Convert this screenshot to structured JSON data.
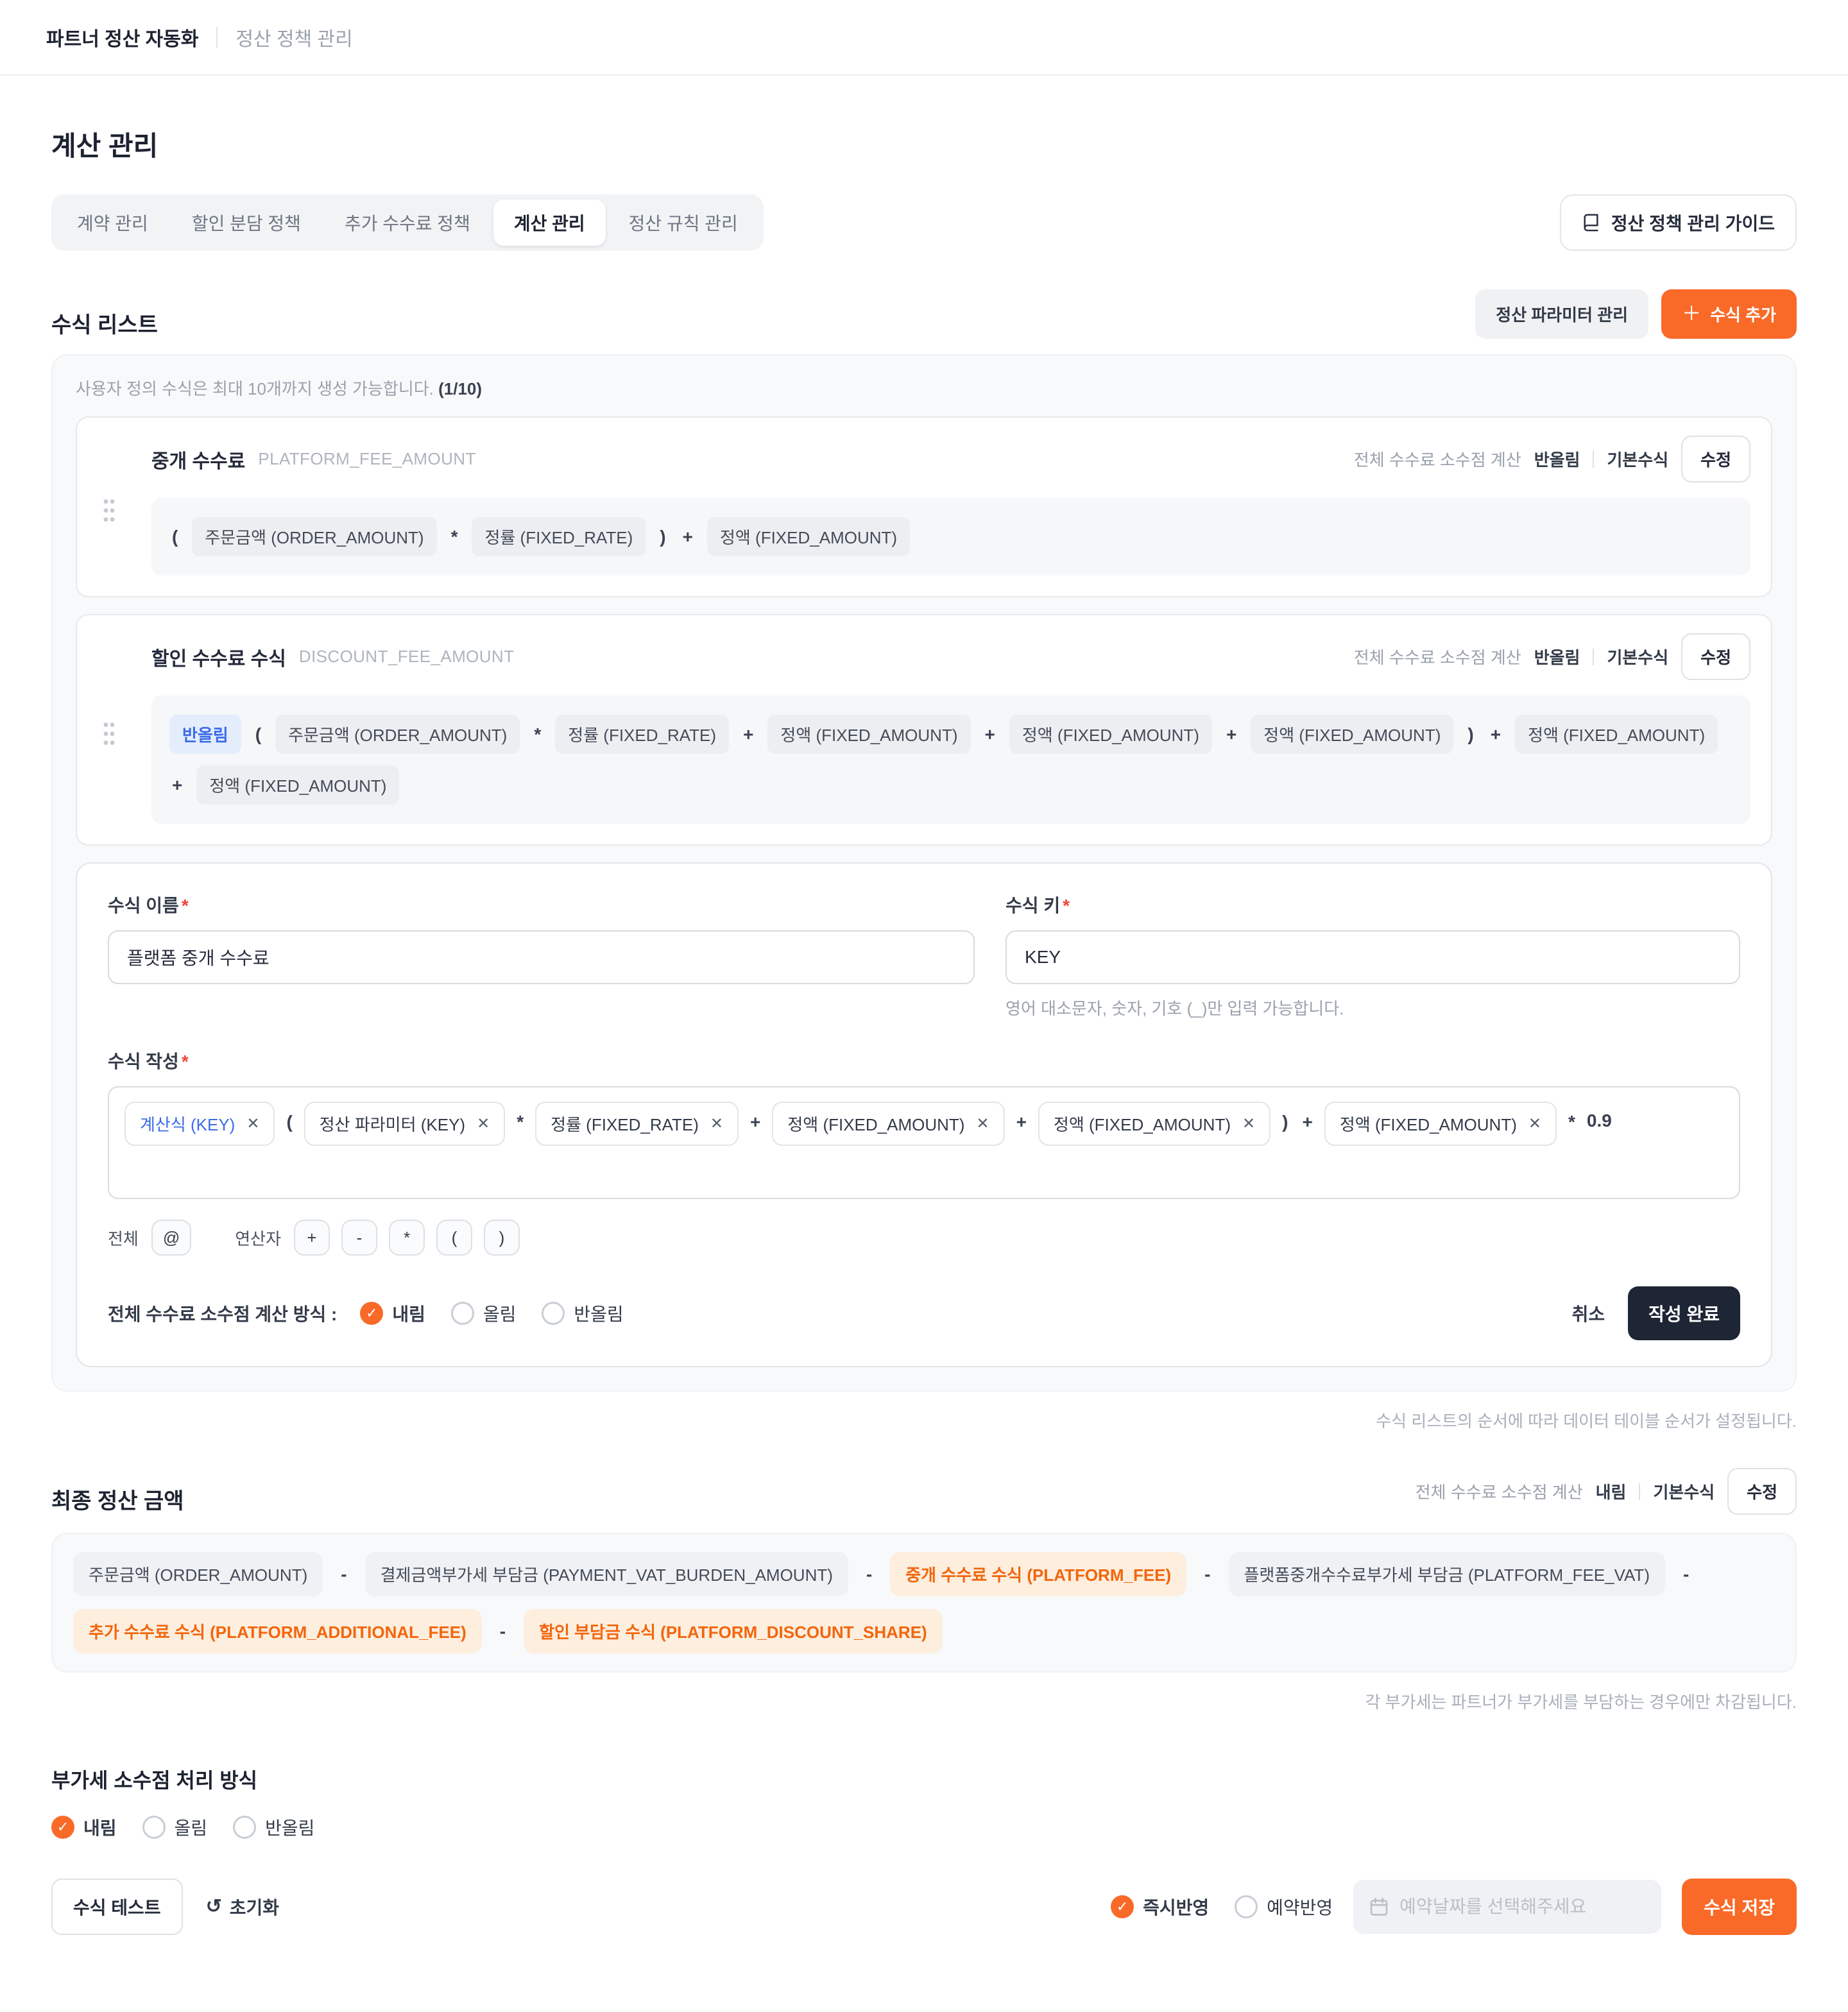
{
  "header": {
    "app_title": "파트너 정산 자동화",
    "breadcrumb": "정산 정책 관리"
  },
  "page": {
    "title": "계산 관리"
  },
  "tabs": {
    "items": [
      {
        "label": "계약 관리",
        "active": false
      },
      {
        "label": "할인 분담 정책",
        "active": false
      },
      {
        "label": "추가 수수료 정책",
        "active": false
      },
      {
        "label": "계산 관리",
        "active": true
      },
      {
        "label": "정산 규칙 관리",
        "active": false
      }
    ],
    "guide_button": "정산 정책 관리 가이드"
  },
  "formula_list": {
    "title": "수식 리스트",
    "param_button": "정산 파라미터 관리",
    "add_button": "수식 추가",
    "notice_text": "사용자 정의 수식은 최대 10개까지 생성 가능합니다. ",
    "notice_count": "(1/10)",
    "cards": [
      {
        "name": "중개 수수료",
        "key": "PLATFORM_FEE_AMOUNT",
        "meta_label": "전체 수수료 소수점 계산",
        "rounding": "반올림",
        "base_label": "기본수식",
        "edit_label": "수정",
        "tokens": [
          {
            "t": "op",
            "v": "("
          },
          {
            "t": "chip",
            "v": "주문금액 (ORDER_AMOUNT)"
          },
          {
            "t": "op",
            "v": "*"
          },
          {
            "t": "chip",
            "v": "정률 (FIXED_RATE)"
          },
          {
            "t": "op",
            "v": ")"
          },
          {
            "t": "op",
            "v": "+"
          },
          {
            "t": "chip",
            "v": "정액 (FIXED_AMOUNT)"
          }
        ]
      },
      {
        "name": "할인 수수료 수식",
        "key": "DISCOUNT_FEE_AMOUNT",
        "meta_label": "전체 수수료 소수점 계산",
        "rounding": "반올림",
        "base_label": "기본수식",
        "edit_label": "수정",
        "tokens": [
          {
            "t": "badge",
            "v": "반올림"
          },
          {
            "t": "op",
            "v": "("
          },
          {
            "t": "chip",
            "v": "주문금액 (ORDER_AMOUNT)"
          },
          {
            "t": "op",
            "v": "*"
          },
          {
            "t": "chip",
            "v": "정률 (FIXED_RATE)"
          },
          {
            "t": "op",
            "v": "+"
          },
          {
            "t": "chip",
            "v": "정액 (FIXED_AMOUNT)"
          },
          {
            "t": "op",
            "v": "+"
          },
          {
            "t": "chip",
            "v": "정액 (FIXED_AMOUNT)"
          },
          {
            "t": "op",
            "v": "+"
          },
          {
            "t": "chip",
            "v": "정액 (FIXED_AMOUNT)"
          },
          {
            "t": "op",
            "v": ")"
          },
          {
            "t": "op",
            "v": "+"
          },
          {
            "t": "chip",
            "v": "정액 (FIXED_AMOUNT)"
          },
          {
            "t": "op",
            "v": "+"
          },
          {
            "t": "chip",
            "v": "정액 (FIXED_AMOUNT)"
          }
        ]
      }
    ]
  },
  "editor": {
    "name_label": "수식 이름",
    "name_value": "플랫폼 중개 수수료",
    "key_label": "수식 키",
    "key_value": "KEY",
    "key_helper": "영어 대소문자, 숫자, 기호 (_)만 입력 가능합니다.",
    "builder_label": "수식 작성",
    "tokens": [
      {
        "t": "rchip",
        "v": "계산식 (KEY)",
        "blue": true
      },
      {
        "t": "op",
        "v": "("
      },
      {
        "t": "rchip",
        "v": "정산 파라미터 (KEY)"
      },
      {
        "t": "op",
        "v": "*"
      },
      {
        "t": "rchip",
        "v": "정률 (FIXED_RATE)"
      },
      {
        "t": "op",
        "v": "+"
      },
      {
        "t": "rchip",
        "v": "정액 (FIXED_AMOUNT)"
      },
      {
        "t": "op",
        "v": "+"
      },
      {
        "t": "rchip",
        "v": "정액 (FIXED_AMOUNT)"
      },
      {
        "t": "op",
        "v": ")"
      },
      {
        "t": "op",
        "v": "+"
      },
      {
        "t": "rchip",
        "v": "정액 (FIXED_AMOUNT)"
      },
      {
        "t": "op",
        "v": "*"
      },
      {
        "t": "num",
        "v": "0.9"
      }
    ],
    "all_label": "전체",
    "at_key": "@",
    "operators_label": "연산자",
    "operator_keys": [
      "+",
      "-",
      "*",
      "(",
      ")"
    ],
    "rounding_label": "전체 수수료 소수점 계산 방식 :",
    "rounding_options": [
      {
        "label": "내림",
        "checked": true
      },
      {
        "label": "올림",
        "checked": false
      },
      {
        "label": "반올림",
        "checked": false
      }
    ],
    "cancel_button": "취소",
    "submit_button": "작성 완료"
  },
  "order_note": "수식 리스트의 순서에 따라 데이터 테이블 순서가 설정됩니다.",
  "final_amount": {
    "title": "최종 정산 금액",
    "meta_label": "전체 수수료 소수점 계산",
    "rounding": "내림",
    "base_label": "기본수식",
    "edit_label": "수정",
    "tokens": [
      {
        "t": "chip",
        "v": "주문금액 (ORDER_AMOUNT)"
      },
      {
        "t": "op",
        "v": "-"
      },
      {
        "t": "chip",
        "v": "결제금액부가세 부담금 (PAYMENT_VAT_BURDEN_AMOUNT)"
      },
      {
        "t": "op",
        "v": "-"
      },
      {
        "t": "ochip",
        "v": "중개 수수료 수식 (PLATFORM_FEE)"
      },
      {
        "t": "op",
        "v": "-"
      },
      {
        "t": "chip",
        "v": "플랫폼중개수수료부가세 부담금 (PLATFORM_FEE_VAT)"
      },
      {
        "t": "op",
        "v": "-"
      },
      {
        "t": "ochip",
        "v": "추가 수수료 수식 (PLATFORM_ADDITIONAL_FEE)"
      },
      {
        "t": "op",
        "v": "-"
      },
      {
        "t": "ochip",
        "v": "할인 부담금 수식 (PLATFORM_DISCOUNT_SHARE)"
      }
    ],
    "note": "각 부가세는 파트너가 부가세를 부담하는 경우에만 차감됩니다."
  },
  "vat": {
    "title": "부가세 소수점 처리 방식",
    "options": [
      {
        "label": "내림",
        "checked": true
      },
      {
        "label": "올림",
        "checked": false
      },
      {
        "label": "반올림",
        "checked": false
      }
    ]
  },
  "footer": {
    "test_button": "수식 테스트",
    "reset_button": "초기화",
    "apply_options": [
      {
        "label": "즉시반영",
        "checked": true
      },
      {
        "label": "예약반영",
        "checked": false
      }
    ],
    "date_placeholder": "예약날짜를 선택해주세요",
    "save_button": "수식 저장"
  },
  "colors": {
    "primary_orange": "#F96A28",
    "dark_navy": "#1E2534",
    "accent_blue": "#3D6CE7",
    "orange_chip_bg": "#FDEEDE"
  }
}
